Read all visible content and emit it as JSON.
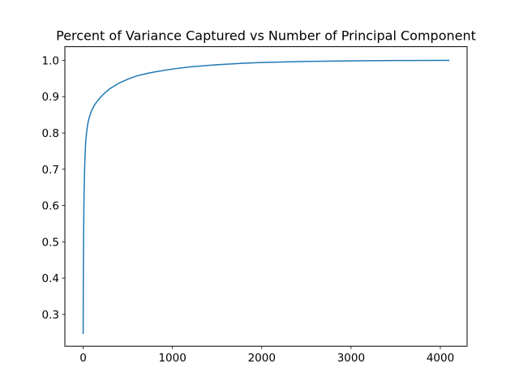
{
  "chart_data": {
    "type": "line",
    "title": "Percent of Variance Captured vs Number of Principal Component",
    "xlabel": "",
    "ylabel": "",
    "xlim": [
      -204.75,
      4299.75
    ],
    "ylim": [
      0.2124,
      1.0376
    ],
    "x_ticks": [
      0,
      1000,
      2000,
      3000,
      4000
    ],
    "x_tick_labels": [
      "0",
      "1000",
      "2000",
      "3000",
      "4000"
    ],
    "y_ticks": [
      0.3,
      0.4,
      0.5,
      0.6,
      0.7,
      0.8,
      0.9,
      1.0
    ],
    "y_tick_labels": [
      "0.3",
      "0.4",
      "0.5",
      "0.6",
      "0.7",
      "0.8",
      "0.9",
      "1.0"
    ],
    "grid": false,
    "series": [
      {
        "color": "#1f77b4",
        "x": [
          0,
          1,
          2,
          3,
          5,
          8,
          10,
          15,
          20,
          25,
          30,
          40,
          50,
          60,
          80,
          100,
          125,
          150,
          200,
          250,
          300,
          400,
          500,
          600,
          700,
          800,
          1000,
          1200,
          1500,
          1800,
          2000,
          2500,
          3000,
          3500,
          4000,
          4095
        ],
        "y": [
          0.248,
          0.33,
          0.4,
          0.45,
          0.52,
          0.59,
          0.63,
          0.69,
          0.73,
          0.76,
          0.78,
          0.805,
          0.822,
          0.835,
          0.852,
          0.864,
          0.876,
          0.885,
          0.9,
          0.912,
          0.922,
          0.937,
          0.948,
          0.957,
          0.963,
          0.968,
          0.976,
          0.982,
          0.988,
          0.992,
          0.994,
          0.997,
          0.9985,
          0.9995,
          1.0,
          1.0
        ]
      }
    ]
  }
}
